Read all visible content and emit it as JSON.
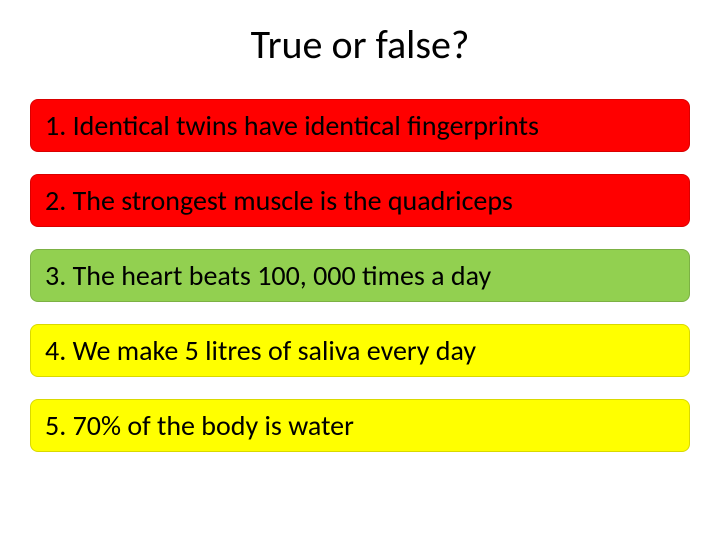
{
  "title": "True or false?",
  "title_fontsize": 40,
  "title_color": "#000000",
  "background_color": "#ffffff",
  "item_fontsize": 28,
  "item_text_color": "#000000",
  "item_border_radius": 8,
  "colors": {
    "red": "#ff0000",
    "green": "#92d050",
    "yellow": "#ffff00"
  },
  "items": [
    {
      "text": "1. Identical twins have identical fingerprints",
      "bg": "#ff0000"
    },
    {
      "text": "2. The strongest muscle is the quadriceps",
      "bg": "#ff0000"
    },
    {
      "text": "3. The heart beats 100, 000 times a day",
      "bg": "#92d050"
    },
    {
      "text": "4. We make 5 litres of saliva every day",
      "bg": "#ffff00"
    },
    {
      "text": "5. 70% of the body is water",
      "bg": "#ffff00"
    }
  ]
}
